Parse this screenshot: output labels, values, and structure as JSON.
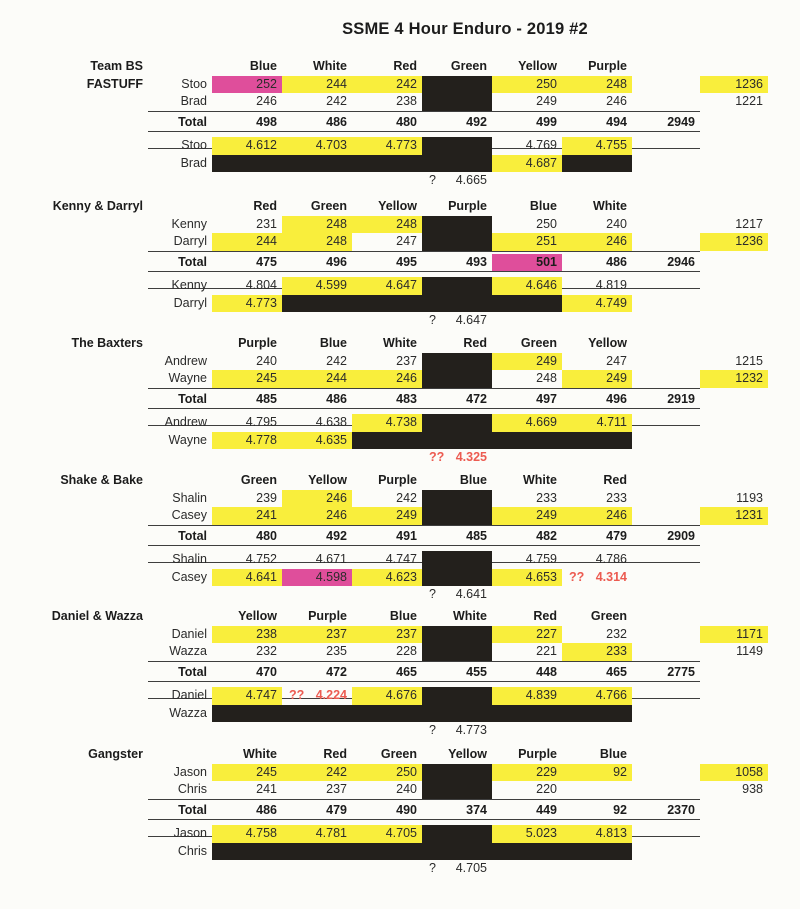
{
  "title": "SSME 4 Hour Enduro - 2019 #2",
  "colors": {
    "highlight_yellow": "#f9ee3c",
    "highlight_magenta": "#df4e9b",
    "redaction_black": "#23201c",
    "flag_red": "#ec5b51"
  },
  "sections": [
    {
      "team": "Team BS",
      "team_sub": "FASTUFF",
      "columns": [
        "Blue",
        "White",
        "Red",
        "Green",
        "Yellow",
        "Purple"
      ],
      "lap_rows": [
        {
          "name": "Stoo",
          "cells": [
            {
              "v": "252",
              "hl": "m"
            },
            {
              "v": "244",
              "hl": "y"
            },
            {
              "v": "242",
              "hl": "y"
            },
            {
              "v": "",
              "hl": "x"
            },
            {
              "v": "250",
              "hl": "y"
            },
            {
              "v": "248",
              "hl": "y"
            }
          ],
          "rider_total": {
            "v": "1236",
            "hl": "y"
          }
        },
        {
          "name": "Brad",
          "cells": [
            {
              "v": "246"
            },
            {
              "v": "242"
            },
            {
              "v": "238"
            },
            {
              "v": "",
              "hl": "x"
            },
            {
              "v": "249"
            },
            {
              "v": "246"
            }
          ],
          "rider_total": {
            "v": "1221"
          }
        }
      ],
      "total_row": {
        "label": "Total",
        "cells": [
          {
            "v": "498"
          },
          {
            "v": "486"
          },
          {
            "v": "480"
          },
          {
            "v": "492"
          },
          {
            "v": "499"
          },
          {
            "v": "494"
          }
        ],
        "grand": "2949"
      },
      "time_rows": [
        {
          "name": "Stoo",
          "cells": [
            {
              "v": "4.612",
              "hl": "y"
            },
            {
              "v": "4.703",
              "hl": "y"
            },
            {
              "v": "4.773",
              "hl": "y"
            },
            {
              "v": "",
              "hl": "x"
            },
            {
              "v": "4.769"
            },
            {
              "v": "4.755",
              "hl": "y"
            }
          ]
        },
        {
          "name": "Brad",
          "cells": [
            {
              "v": "",
              "hl": "x"
            },
            {
              "v": "",
              "hl": "x"
            },
            {
              "v": "",
              "hl": "x"
            },
            {
              "v": "",
              "hl": "x"
            },
            {
              "v": "4.687",
              "hl": "y"
            },
            {
              "v": "",
              "hl": "x"
            }
          ]
        }
      ],
      "fastest": {
        "mark": "?",
        "value": "4.665",
        "red": false
      }
    },
    {
      "team": "Kenny & Darryl",
      "team_sub": "",
      "columns": [
        "Red",
        "Green",
        "Yellow",
        "Purple",
        "Blue",
        "White"
      ],
      "lap_rows": [
        {
          "name": "Kenny",
          "cells": [
            {
              "v": "231"
            },
            {
              "v": "248",
              "hl": "y"
            },
            {
              "v": "248",
              "hl": "y"
            },
            {
              "v": "",
              "hl": "x"
            },
            {
              "v": "250"
            },
            {
              "v": "240"
            }
          ],
          "rider_total": {
            "v": "1217"
          }
        },
        {
          "name": "Darryl",
          "cells": [
            {
              "v": "244",
              "hl": "y"
            },
            {
              "v": "248",
              "hl": "y"
            },
            {
              "v": "247"
            },
            {
              "v": "",
              "hl": "x"
            },
            {
              "v": "251",
              "hl": "y"
            },
            {
              "v": "246",
              "hl": "y"
            }
          ],
          "rider_total": {
            "v": "1236",
            "hl": "y"
          }
        }
      ],
      "total_row": {
        "label": "Total",
        "cells": [
          {
            "v": "475"
          },
          {
            "v": "496"
          },
          {
            "v": "495"
          },
          {
            "v": "493"
          },
          {
            "v": "501",
            "hl": "m"
          },
          {
            "v": "486"
          }
        ],
        "grand": "2946"
      },
      "time_rows": [
        {
          "name": "Kenny",
          "cells": [
            {
              "v": "4.804"
            },
            {
              "v": "4.599",
              "hl": "y"
            },
            {
              "v": "4.647",
              "hl": "y"
            },
            {
              "v": "",
              "hl": "x"
            },
            {
              "v": "4.646",
              "hl": "y"
            },
            {
              "v": "4.819"
            }
          ]
        },
        {
          "name": "Darryl",
          "cells": [
            {
              "v": "4.773",
              "hl": "y"
            },
            {
              "v": "",
              "hl": "x"
            },
            {
              "v": "",
              "hl": "x"
            },
            {
              "v": "",
              "hl": "x"
            },
            {
              "v": "",
              "hl": "x"
            },
            {
              "v": "4.749",
              "hl": "y"
            }
          ]
        }
      ],
      "fastest": {
        "mark": "?",
        "value": "4.647",
        "red": false
      }
    },
    {
      "team": "The Baxters",
      "team_sub": "",
      "columns": [
        "Purple",
        "Blue",
        "White",
        "Red",
        "Green",
        "Yellow"
      ],
      "lap_rows": [
        {
          "name": "Andrew",
          "cells": [
            {
              "v": "240"
            },
            {
              "v": "242"
            },
            {
              "v": "237"
            },
            {
              "v": "",
              "hl": "x"
            },
            {
              "v": "249",
              "hl": "y"
            },
            {
              "v": "247"
            }
          ],
          "rider_total": {
            "v": "1215"
          }
        },
        {
          "name": "Wayne",
          "cells": [
            {
              "v": "245",
              "hl": "y"
            },
            {
              "v": "244",
              "hl": "y"
            },
            {
              "v": "246",
              "hl": "y"
            },
            {
              "v": "",
              "hl": "x"
            },
            {
              "v": "248"
            },
            {
              "v": "249",
              "hl": "y"
            }
          ],
          "rider_total": {
            "v": "1232",
            "hl": "y"
          }
        }
      ],
      "total_row": {
        "label": "Total",
        "cells": [
          {
            "v": "485"
          },
          {
            "v": "486"
          },
          {
            "v": "483"
          },
          {
            "v": "472"
          },
          {
            "v": "497"
          },
          {
            "v": "496"
          }
        ],
        "grand": "2919"
      },
      "time_rows": [
        {
          "name": "Andrew",
          "cells": [
            {
              "v": "4.795"
            },
            {
              "v": "4.638"
            },
            {
              "v": "4.738",
              "hl": "y"
            },
            {
              "v": "",
              "hl": "x"
            },
            {
              "v": "4.669",
              "hl": "y"
            },
            {
              "v": "4.711",
              "hl": "y"
            }
          ]
        },
        {
          "name": "Wayne",
          "cells": [
            {
              "v": "4.778",
              "hl": "y"
            },
            {
              "v": "4.635",
              "hl": "y"
            },
            {
              "v": "",
              "hl": "x"
            },
            {
              "v": "",
              "hl": "x"
            },
            {
              "v": "",
              "hl": "x"
            },
            {
              "v": "",
              "hl": "x"
            }
          ]
        }
      ],
      "fastest": {
        "mark": "??",
        "value": "4.325",
        "red": true
      }
    },
    {
      "team": "Shake & Bake",
      "team_sub": "",
      "columns": [
        "Green",
        "Yellow",
        "Purple",
        "Blue",
        "White",
        "Red"
      ],
      "lap_rows": [
        {
          "name": "Shalin",
          "cells": [
            {
              "v": "239"
            },
            {
              "v": "246",
              "hl": "y"
            },
            {
              "v": "242"
            },
            {
              "v": "",
              "hl": "x"
            },
            {
              "v": "233"
            },
            {
              "v": "233"
            }
          ],
          "rider_total": {
            "v": "1193"
          }
        },
        {
          "name": "Casey",
          "cells": [
            {
              "v": "241",
              "hl": "y"
            },
            {
              "v": "246",
              "hl": "y"
            },
            {
              "v": "249",
              "hl": "y"
            },
            {
              "v": "",
              "hl": "x"
            },
            {
              "v": "249",
              "hl": "y"
            },
            {
              "v": "246",
              "hl": "y"
            }
          ],
          "rider_total": {
            "v": "1231",
            "hl": "y"
          }
        }
      ],
      "total_row": {
        "label": "Total",
        "cells": [
          {
            "v": "480"
          },
          {
            "v": "492"
          },
          {
            "v": "491"
          },
          {
            "v": "485"
          },
          {
            "v": "482"
          },
          {
            "v": "479"
          }
        ],
        "grand": "2909"
      },
      "time_rows": [
        {
          "name": "Shalin",
          "cells": [
            {
              "v": "4.752"
            },
            {
              "v": "4.671"
            },
            {
              "v": "4.747"
            },
            {
              "v": "",
              "hl": "x"
            },
            {
              "v": "4.759"
            },
            {
              "v": "4.786"
            }
          ]
        },
        {
          "name": "Casey",
          "cells": [
            {
              "v": "4.641",
              "hl": "y"
            },
            {
              "v": "4.598",
              "hl": "m"
            },
            {
              "v": "4.623",
              "hl": "y"
            },
            {
              "v": "",
              "hl": "x"
            },
            {
              "v": "4.653",
              "hl": "y"
            },
            {
              "q": "??",
              "v": "4.314",
              "hl": "r"
            }
          ]
        }
      ],
      "fastest": {
        "mark": "?",
        "value": "4.641",
        "red": false
      }
    },
    {
      "team": "Daniel & Wazza",
      "team_sub": "",
      "columns": [
        "Yellow",
        "Purple",
        "Blue",
        "White",
        "Red",
        "Green"
      ],
      "lap_rows": [
        {
          "name": "Daniel",
          "cells": [
            {
              "v": "238",
              "hl": "y"
            },
            {
              "v": "237",
              "hl": "y"
            },
            {
              "v": "237",
              "hl": "y"
            },
            {
              "v": "",
              "hl": "x"
            },
            {
              "v": "227",
              "hl": "y"
            },
            {
              "v": "232"
            }
          ],
          "rider_total": {
            "v": "1171",
            "hl": "y"
          }
        },
        {
          "name": "Wazza",
          "cells": [
            {
              "v": "232"
            },
            {
              "v": "235"
            },
            {
              "v": "228"
            },
            {
              "v": "",
              "hl": "x"
            },
            {
              "v": "221"
            },
            {
              "v": "233",
              "hl": "y"
            }
          ],
          "rider_total": {
            "v": "1149"
          }
        }
      ],
      "total_row": {
        "label": "Total",
        "cells": [
          {
            "v": "470"
          },
          {
            "v": "472"
          },
          {
            "v": "465"
          },
          {
            "v": "455"
          },
          {
            "v": "448"
          },
          {
            "v": "465"
          }
        ],
        "grand": "2775"
      },
      "time_rows": [
        {
          "name": "Daniel",
          "cells": [
            {
              "v": "4.747",
              "hl": "y"
            },
            {
              "q": "??",
              "v": "4.224",
              "hl": "r"
            },
            {
              "v": "4.676",
              "hl": "y"
            },
            {
              "v": "",
              "hl": "x"
            },
            {
              "v": "4.839",
              "hl": "y"
            },
            {
              "v": "4.766",
              "hl": "y"
            }
          ]
        },
        {
          "name": "Wazza",
          "cells": [
            {
              "v": "",
              "hl": "x"
            },
            {
              "v": "",
              "hl": "x"
            },
            {
              "v": "",
              "hl": "x"
            },
            {
              "v": "",
              "hl": "x"
            },
            {
              "v": "",
              "hl": "x"
            },
            {
              "v": "",
              "hl": "x"
            }
          ]
        }
      ],
      "fastest": {
        "mark": "?",
        "value": "4.773",
        "red": false
      }
    },
    {
      "team": "Gangster",
      "team_sub": "",
      "columns": [
        "White",
        "Red",
        "Green",
        "Yellow",
        "Purple",
        "Blue"
      ],
      "lap_rows": [
        {
          "name": "Jason",
          "cells": [
            {
              "v": "245",
              "hl": "y"
            },
            {
              "v": "242",
              "hl": "y"
            },
            {
              "v": "250",
              "hl": "y"
            },
            {
              "v": "",
              "hl": "x"
            },
            {
              "v": "229",
              "hl": "y"
            },
            {
              "v": "92",
              "hl": "y"
            }
          ],
          "rider_total": {
            "v": "1058",
            "hl": "y"
          }
        },
        {
          "name": "Chris",
          "cells": [
            {
              "v": "241"
            },
            {
              "v": "237"
            },
            {
              "v": "240"
            },
            {
              "v": "",
              "hl": "x"
            },
            {
              "v": "220"
            },
            {
              "v": ""
            }
          ],
          "rider_total": {
            "v": "938"
          }
        }
      ],
      "total_row": {
        "label": "Total",
        "cells": [
          {
            "v": "486"
          },
          {
            "v": "479"
          },
          {
            "v": "490"
          },
          {
            "v": "374"
          },
          {
            "v": "449"
          },
          {
            "v": "92"
          }
        ],
        "grand": "2370"
      },
      "time_rows": [
        {
          "name": "Jason",
          "cells": [
            {
              "v": "4.758",
              "hl": "y"
            },
            {
              "v": "4.781",
              "hl": "y"
            },
            {
              "v": "4.705",
              "hl": "y"
            },
            {
              "v": "",
              "hl": "x"
            },
            {
              "v": "5.023",
              "hl": "y"
            },
            {
              "v": "4.813",
              "hl": "y"
            }
          ]
        },
        {
          "name": "Chris",
          "cells": [
            {
              "v": "",
              "hl": "x"
            },
            {
              "v": "",
              "hl": "x"
            },
            {
              "v": "",
              "hl": "x"
            },
            {
              "v": "",
              "hl": "x"
            },
            {
              "v": "",
              "hl": "x"
            },
            {
              "v": "",
              "hl": "x"
            }
          ]
        }
      ],
      "fastest": {
        "mark": "?",
        "value": "4.705",
        "red": false
      }
    }
  ]
}
